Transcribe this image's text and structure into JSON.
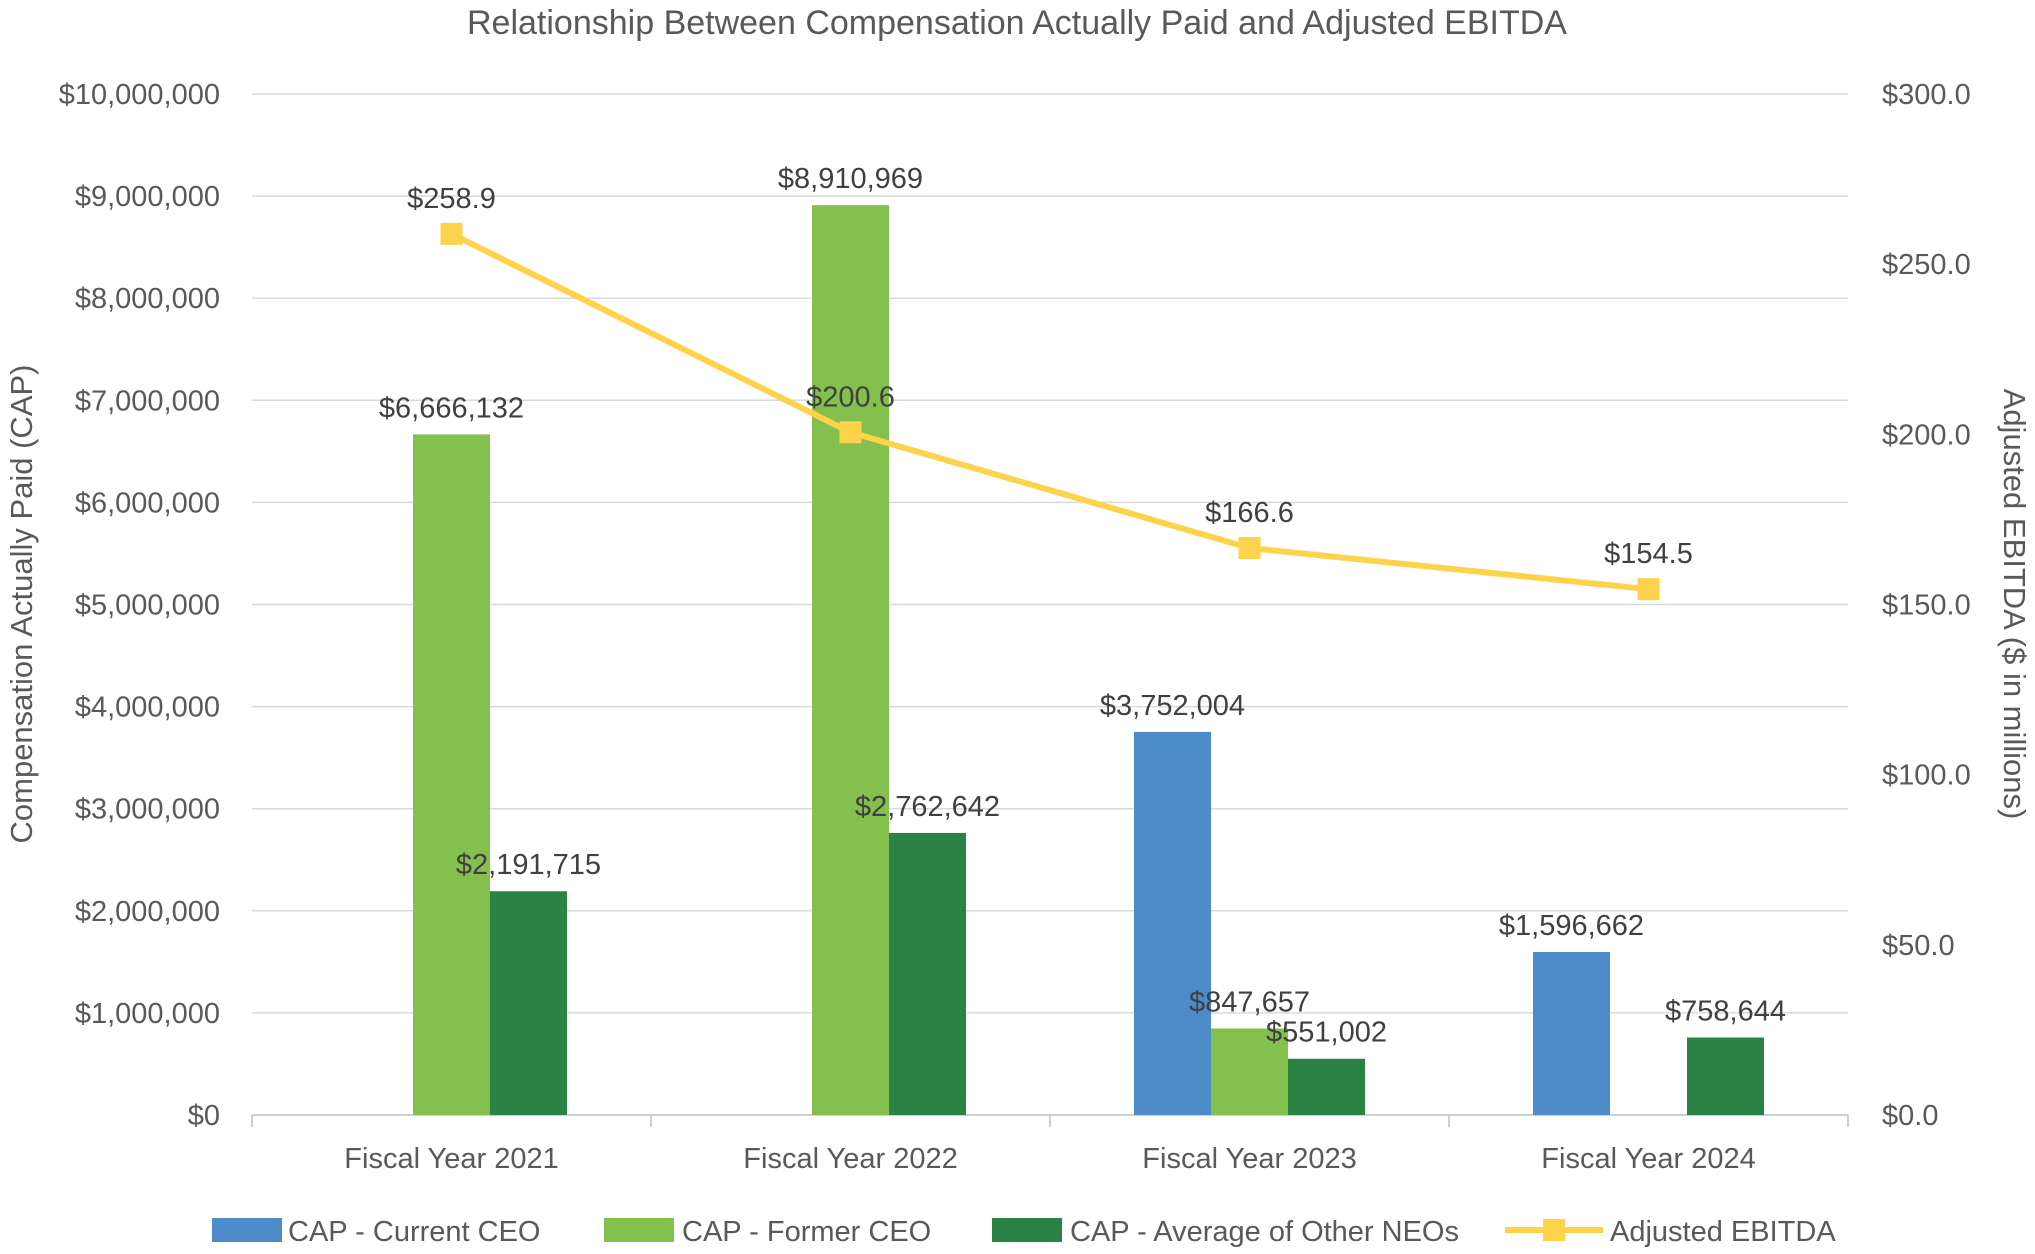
{
  "chart_data": {
    "type": "bar",
    "title": "Relationship Between Compensation Actually Paid and Adjusted EBITDA",
    "categories": [
      "Fiscal Year 2021",
      "Fiscal Year 2022",
      "Fiscal Year 2023",
      "Fiscal Year 2024"
    ],
    "ylabel": "Compensation Actually Paid (CAP)",
    "y2label": "Adjusted EBITDA ($ in millions)",
    "ylim": [
      0,
      10000000
    ],
    "y2lim": [
      0,
      300
    ],
    "yticks": [
      "$0",
      "$1,000,000",
      "$2,000,000",
      "$3,000,000",
      "$4,000,000",
      "$5,000,000",
      "$6,000,000",
      "$7,000,000",
      "$8,000,000",
      "$9,000,000",
      "$10,000,000"
    ],
    "y2ticks": [
      "$0.0",
      "$50.0",
      "$100.0",
      "$150.0",
      "$200.0",
      "$250.0",
      "$300.0"
    ],
    "grid": true,
    "legend_position": "bottom",
    "series": [
      {
        "name": "CAP - Current CEO",
        "kind": "bar",
        "axis": "left",
        "color": "#4e8cc9",
        "values": [
          null,
          null,
          3752004,
          1596662
        ],
        "labels": [
          null,
          null,
          "$3,752,004",
          "$1,596,662"
        ]
      },
      {
        "name": "CAP - Former CEO",
        "kind": "bar",
        "axis": "left",
        "color": "#84c04d",
        "values": [
          6666132,
          8910969,
          847657,
          null
        ],
        "labels": [
          "$6,666,132",
          "$8,910,969",
          "$847,657",
          null
        ]
      },
      {
        "name": "CAP - Average of Other NEOs",
        "kind": "bar",
        "axis": "left",
        "color": "#2a8344",
        "values": [
          2191715,
          2762642,
          551002,
          758644
        ],
        "labels": [
          "$2,191,715",
          "$2,762,642",
          "$551,002",
          "$758,644"
        ]
      },
      {
        "name": "Adjusted EBITDA",
        "kind": "line",
        "axis": "right",
        "color": "#fcd34a",
        "values": [
          258.9,
          200.6,
          166.6,
          154.5
        ],
        "labels": [
          "$258.9",
          "$200.6",
          "$166.6",
          "$154.5"
        ]
      }
    ]
  }
}
